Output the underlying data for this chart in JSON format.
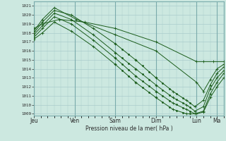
{
  "xlabel": "Pression niveau de la mer( hPa )",
  "ylim": [
    1008.8,
    1021.5
  ],
  "yticks": [
    1009,
    1010,
    1011,
    1012,
    1013,
    1014,
    1015,
    1016,
    1017,
    1018,
    1019,
    1020,
    1021
  ],
  "day_labels": [
    "Jeu",
    "Ven",
    "Sam",
    "Dim",
    "Lun",
    "Ma"
  ],
  "day_positions": [
    0,
    24,
    48,
    72,
    96,
    108
  ],
  "xlim": [
    0,
    112
  ],
  "bg_color": "#cce8e0",
  "grid_color": "#aacccc",
  "line_color": "#1a5c1a",
  "line_width": 0.7
}
